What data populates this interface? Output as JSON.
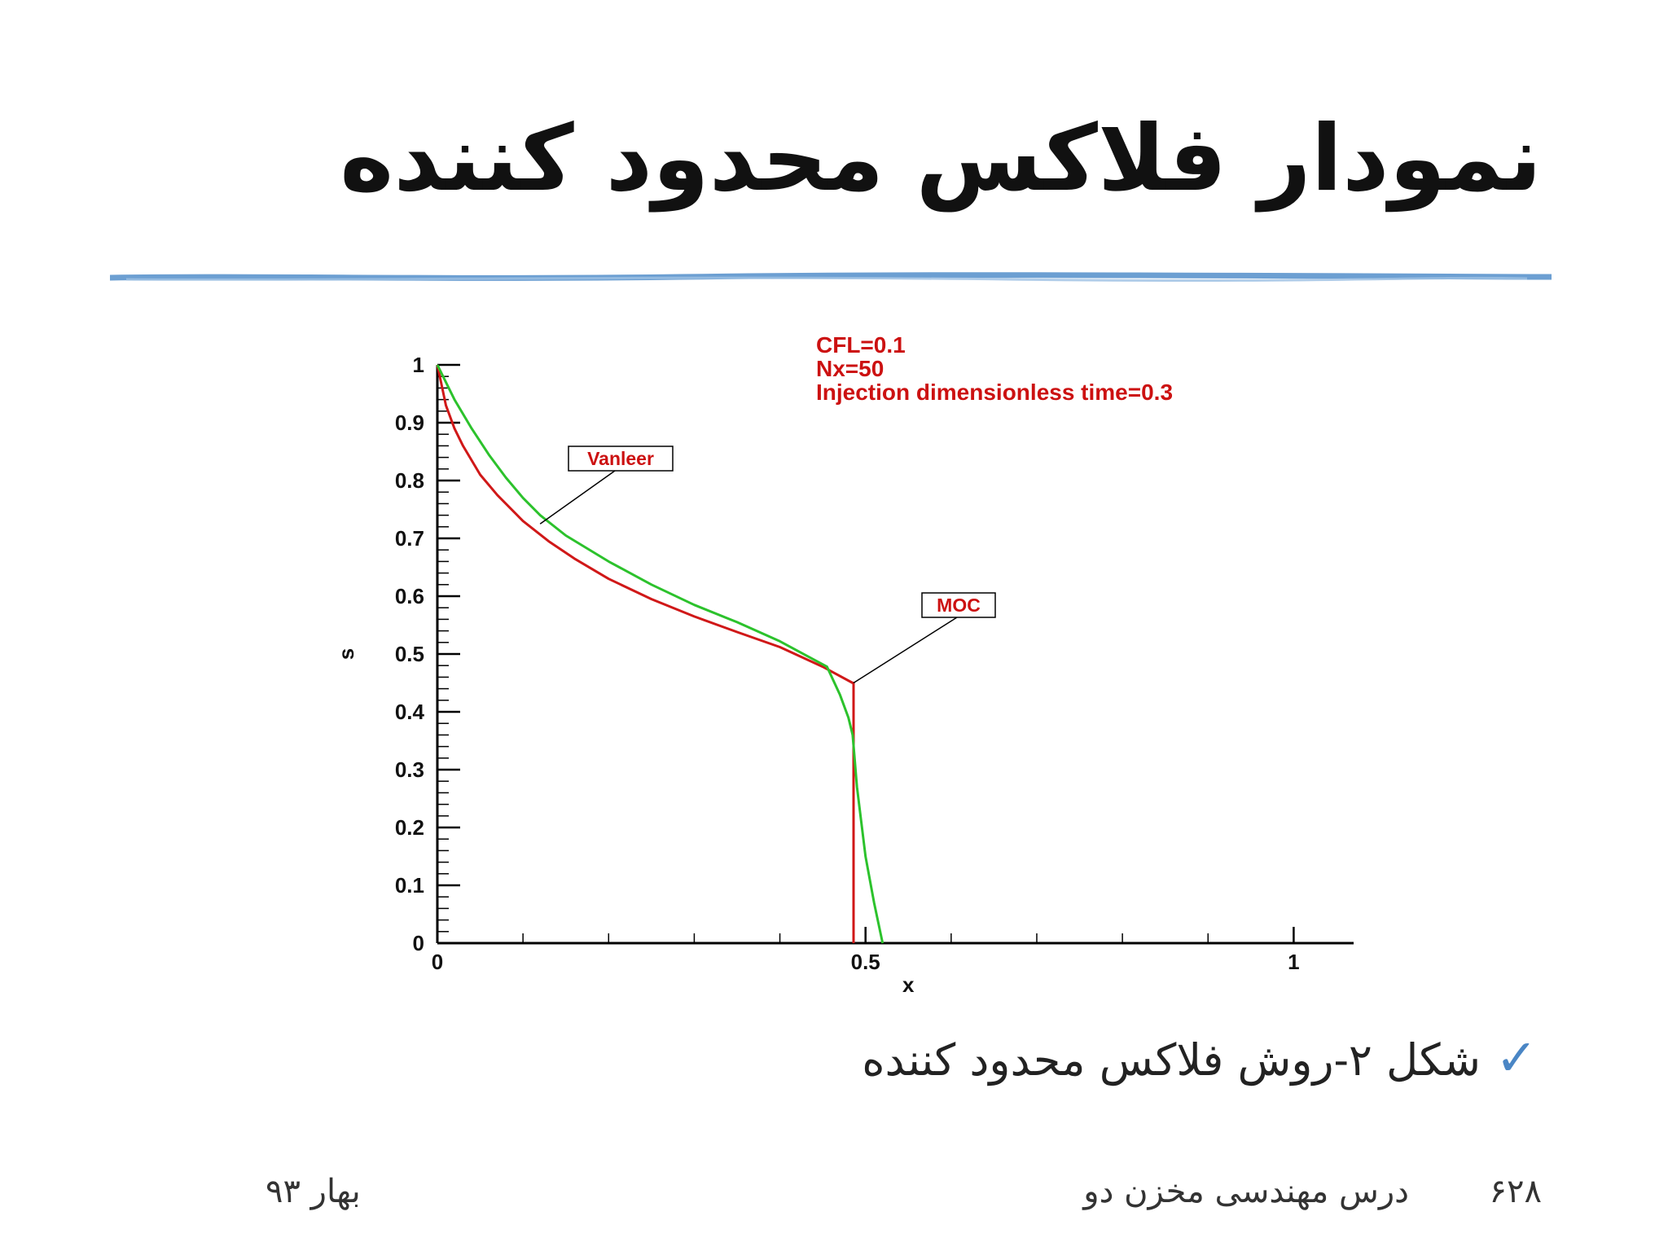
{
  "slide": {
    "title": "نمودار فلاکس محدود کننده",
    "caption": "شکل ۲-روش فلاکس محدود کننده",
    "check_icon": "check-icon",
    "footer": {
      "page": "۶۲۸",
      "course": "درس مهندسی مخزن دو",
      "date": "بهار ۹۳"
    },
    "colors": {
      "divider": "#6c9fd2",
      "check": "#4a86c5"
    }
  },
  "chart_data": {
    "type": "line",
    "title_lines": [
      "CFL=0.1",
      "Nx=50",
      "Injection dimensionless time=0.3"
    ],
    "xlabel": "x",
    "ylabel": "s",
    "xlim": [
      0,
      1.07
    ],
    "ylim": [
      0,
      1
    ],
    "x_ticks": [
      "0",
      "0.5",
      "1"
    ],
    "y_ticks": [
      "0",
      "0.1",
      "0.2",
      "0.3",
      "0.4",
      "0.5",
      "0.6",
      "0.7",
      "0.8",
      "0.9",
      "1"
    ],
    "grid": false,
    "annotations": [
      "Vanleer",
      "MOC"
    ],
    "series": [
      {
        "name": "MOC",
        "color": "#d01818",
        "x": [
          0,
          0.01,
          0.02,
          0.03,
          0.05,
          0.07,
          0.1,
          0.13,
          0.16,
          0.2,
          0.25,
          0.3,
          0.35,
          0.4,
          0.45,
          0.485,
          0.486,
          0.486
        ],
        "y": [
          1.0,
          0.93,
          0.89,
          0.86,
          0.81,
          0.775,
          0.73,
          0.695,
          0.665,
          0.63,
          0.595,
          0.565,
          0.538,
          0.512,
          0.478,
          0.45,
          0.45,
          0.0
        ]
      },
      {
        "name": "Vanleer",
        "color": "#2cc22c",
        "x": [
          0,
          0.01,
          0.02,
          0.04,
          0.06,
          0.08,
          0.1,
          0.12,
          0.15,
          0.2,
          0.25,
          0.3,
          0.35,
          0.4,
          0.44,
          0.455,
          0.47,
          0.48,
          0.485,
          0.49,
          0.5,
          0.51,
          0.52
        ],
        "y": [
          1.0,
          0.97,
          0.94,
          0.89,
          0.845,
          0.805,
          0.77,
          0.74,
          0.705,
          0.66,
          0.62,
          0.585,
          0.555,
          0.522,
          0.49,
          0.478,
          0.43,
          0.39,
          0.36,
          0.27,
          0.15,
          0.07,
          0.0
        ]
      }
    ]
  }
}
